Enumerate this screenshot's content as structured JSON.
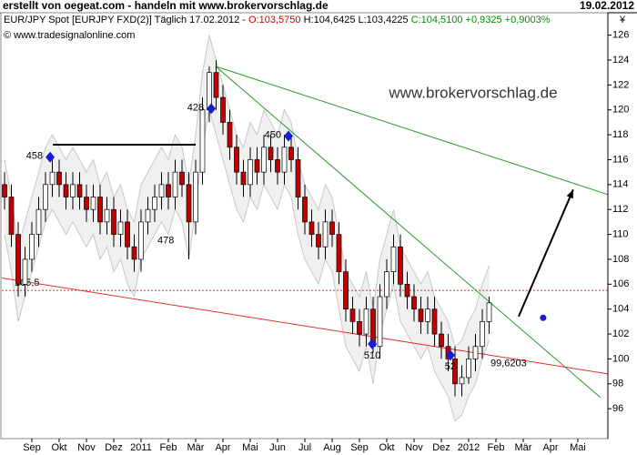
{
  "chart_data": {
    "type": "candlestick",
    "header": {
      "left": "erstellt von oegeat.com - handeln mit www.brokervorschlag.de",
      "right": "19.02.2012"
    },
    "info": [
      {
        "text": "EUR/JPY Spot [EURJPY FXD(2)] Täglich 17.02.2012 - ",
        "color": "#000000"
      },
      {
        "text": "O:103,5750",
        "color": "#d00000"
      },
      {
        "text": " H:104,6425 L:103,4225 ",
        "color": "#000000"
      },
      {
        "text": "C:104,5100 +0,9325 +0,9003%",
        "color": "#009000"
      }
    ],
    "source": "© www.tradesignalonline.com",
    "watermark": "www.brokervorschlag.de",
    "currency": "¥",
    "x": [
      -0.5,
      -0.25,
      0,
      0.25,
      0.5,
      0.75,
      1,
      1.25,
      1.5,
      1.75,
      2,
      2.25,
      2.5,
      2.75,
      3,
      3.25,
      3.5,
      3.75,
      4,
      4.25,
      4.5,
      4.75,
      5,
      5.25,
      5.5,
      5.75,
      6,
      6.25,
      6.5,
      6.75,
      7,
      7.25,
      7.5,
      7.75,
      8,
      8.25,
      8.5,
      8.75,
      9,
      9.25,
      9.5,
      9.75,
      10,
      10.25,
      10.5,
      10.75,
      11,
      11.25,
      11.5,
      11.75,
      12,
      12.25,
      12.5,
      12.75,
      13,
      13.25,
      13.5,
      13.75,
      14,
      14.25,
      14.5,
      14.75,
      15,
      15.25,
      15.5,
      15.75,
      16,
      16.25,
      16.5,
      16.75,
      17,
      17.25
    ],
    "open": [
      114,
      113,
      110,
      106,
      108,
      110,
      112,
      114,
      115,
      114,
      113,
      114,
      113,
      112,
      113,
      111,
      112,
      110,
      111,
      109,
      108,
      111,
      112,
      113,
      114,
      113,
      115,
      114,
      111,
      115,
      120,
      123,
      121,
      119,
      117,
      115,
      114,
      116,
      115,
      117,
      116,
      115,
      117,
      116,
      113,
      111,
      110,
      109,
      111,
      110,
      107,
      104,
      103,
      102,
      104,
      101,
      105,
      107,
      109,
      106,
      105,
      104,
      103,
      104,
      102,
      101,
      100,
      98,
      98.5,
      100,
      101,
      103
    ],
    "high": [
      115,
      114,
      111,
      109,
      111,
      113,
      115,
      116,
      116,
      115,
      115,
      115,
      114,
      114,
      114,
      113,
      113,
      112,
      112,
      110,
      112,
      113,
      114,
      115,
      115,
      116,
      116,
      115,
      116,
      121,
      123.5,
      124,
      122,
      120,
      118,
      116,
      117,
      117,
      118,
      118,
      117,
      118,
      118,
      117,
      114,
      112,
      111,
      112,
      112,
      111,
      108,
      105,
      104,
      105,
      105,
      106,
      108,
      110,
      110,
      107,
      106,
      105,
      105,
      105,
      103,
      102,
      101,
      99.5,
      101,
      102,
      104,
      105
    ],
    "low": [
      112,
      109,
      105,
      105,
      107,
      109,
      111,
      113,
      113,
      112,
      112,
      112,
      111,
      111,
      110,
      110,
      109,
      109,
      108,
      107,
      107,
      110,
      111,
      112,
      112,
      112,
      113,
      108,
      110,
      114,
      119,
      120,
      118,
      116,
      114,
      113,
      113,
      114,
      114,
      115,
      114,
      114,
      115,
      112,
      110,
      109,
      108,
      108,
      109,
      106,
      103,
      102,
      101,
      101,
      100.5,
      100,
      104,
      106,
      105,
      104,
      103,
      102,
      102,
      101,
      100,
      99,
      97,
      97,
      98,
      99,
      100,
      102
    ],
    "close": [
      113,
      110,
      106,
      108,
      110,
      112,
      114,
      115,
      114,
      113,
      114,
      113,
      112,
      113,
      111,
      112,
      110,
      111,
      109,
      108,
      111,
      112,
      113,
      114,
      113,
      115,
      114,
      111,
      115,
      120,
      123,
      121,
      119,
      117,
      115,
      114,
      116,
      115,
      117,
      116,
      115,
      117,
      116,
      113,
      111,
      110,
      109,
      111,
      110,
      107,
      104,
      103,
      102,
      104,
      101,
      105,
      107,
      109,
      106,
      105,
      104,
      103,
      104,
      102,
      101,
      100,
      98,
      98.5,
      100,
      101,
      103,
      104.5
    ],
    "band_upper": [
      116,
      113,
      109,
      111,
      113,
      115,
      117,
      118,
      117,
      116,
      117,
      116,
      115,
      116,
      114,
      115,
      113,
      114,
      112,
      111,
      114,
      115,
      116,
      117,
      116,
      118,
      117,
      114,
      118,
      123,
      126,
      124,
      122,
      120,
      118,
      117,
      119,
      118,
      120,
      119,
      118,
      120,
      119,
      116,
      114,
      113,
      112,
      114,
      113,
      110,
      107,
      106,
      105,
      107,
      104,
      108,
      110,
      112,
      109,
      108,
      107,
      106,
      107,
      105,
      104,
      103,
      101,
      101.5,
      103,
      104,
      106,
      107.5
    ],
    "band_lower": [
      110,
      107,
      103,
      105,
      107,
      109,
      111,
      112,
      111,
      110,
      111,
      110,
      109,
      110,
      108,
      109,
      107,
      108,
      106,
      105,
      108,
      109,
      110,
      111,
      110,
      112,
      111,
      108,
      112,
      117,
      120,
      118,
      116,
      114,
      112,
      111,
      113,
      112,
      114,
      113,
      112,
      114,
      113,
      110,
      108,
      107,
      106,
      108,
      107,
      104,
      101,
      100,
      99,
      101,
      98,
      102,
      104,
      106,
      103,
      102,
      101,
      100,
      101,
      99,
      98,
      97,
      95,
      95.5,
      97,
      98,
      100,
      101.5
    ],
    "up_color": "#ffffff",
    "down_color": "#c00000",
    "band_color": "#f0f0f0",
    "xlim": [
      -0.6,
      21.6
    ],
    "ylim": [
      93.6,
      127.8
    ],
    "yticks": [
      96,
      98,
      100,
      102,
      104,
      106,
      108,
      110,
      112,
      114,
      116,
      118,
      120,
      122,
      124,
      126
    ],
    "xticks": [
      {
        "value": 0.5,
        "label": "Sep"
      },
      {
        "value": 1.5,
        "label": "Okt"
      },
      {
        "value": 2.5,
        "label": "Nov"
      },
      {
        "value": 3.5,
        "label": "Dez"
      },
      {
        "value": 4.5,
        "label": "2011"
      },
      {
        "value": 5.5,
        "label": "Feb"
      },
      {
        "value": 6.5,
        "label": "Mär"
      },
      {
        "value": 7.5,
        "label": "Apr"
      },
      {
        "value": 8.5,
        "label": "Mai"
      },
      {
        "value": 9.5,
        "label": "Jun"
      },
      {
        "value": 10.5,
        "label": "Jul"
      },
      {
        "value": 11.5,
        "label": "Aug"
      },
      {
        "value": 12.5,
        "label": "Sep"
      },
      {
        "value": 13.5,
        "label": "Okt"
      },
      {
        "value": 14.5,
        "label": "Nov"
      },
      {
        "value": 15.5,
        "label": "Dez"
      },
      {
        "value": 16.5,
        "label": "2012"
      },
      {
        "value": 17.5,
        "label": "Feb"
      },
      {
        "value": 18.5,
        "label": "Mär"
      },
      {
        "value": 19.5,
        "label": "Apr"
      },
      {
        "value": 20.5,
        "label": "Mai"
      }
    ],
    "lines": [
      {
        "color": "#2a9a2a",
        "x": [
          7.23,
          21.6
        ],
        "y": [
          123.5,
          113.2
        ]
      },
      {
        "color": "#2a9a2a",
        "x": [
          7.23,
          21.33
        ],
        "y": [
          123.5,
          96.9
        ]
      },
      {
        "color": "#e03030",
        "x": [
          -0.6,
          21.6
        ],
        "y": [
          106.5,
          98.8
        ]
      },
      {
        "color": "#000000",
        "x": [
          1.27,
          6.5
        ],
        "y": [
          117.2,
          117.2
        ]
      }
    ],
    "level": {
      "value": 105.5,
      "label": "105,5",
      "color": "#e03030"
    },
    "level_tag": {
      "x": 17.3,
      "value": 99.6203,
      "label": "99,6203",
      "color": "#c00000"
    },
    "arrow": {
      "x": [
        18.33,
        20.33
      ],
      "y": [
        103.4,
        113.6
      ],
      "color": "#000000"
    },
    "point": {
      "x": 19.23,
      "y": 103.3,
      "color": "#1a1ad0"
    },
    "markers": [
      {
        "x": 1.17,
        "y": 116.2,
        "label": "458"
      },
      {
        "x": 7.07,
        "y": 120.1,
        "label": "428"
      },
      {
        "x": 9.9,
        "y": 117.9,
        "label": "450"
      },
      {
        "x": 12.97,
        "y": 101.2,
        "label": "510"
      },
      {
        "x": 15.83,
        "y": 100.3,
        "label": "52"
      }
    ],
    "notes": [
      {
        "x": 5.1,
        "y": 109.5,
        "label": "478"
      }
    ],
    "marker_color": "#1a1ad0"
  }
}
